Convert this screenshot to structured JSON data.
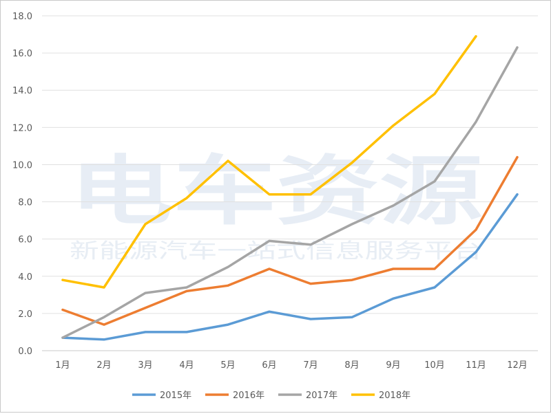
{
  "chart_data": {
    "type": "line",
    "title": "",
    "xlabel": "",
    "ylabel": "",
    "categories": [
      "1月",
      "2月",
      "3月",
      "4月",
      "5月",
      "6月",
      "7月",
      "8月",
      "9月",
      "10月",
      "11月",
      "12月"
    ],
    "ylim": [
      0,
      18
    ],
    "yticks": [
      "0.0",
      "2.0",
      "4.0",
      "6.0",
      "8.0",
      "10.0",
      "12.0",
      "14.0",
      "16.0",
      "18.0"
    ],
    "grid": true,
    "legend_position": "bottom",
    "series": [
      {
        "name": "2015年",
        "color": "#5B9BD5",
        "values": [
          0.7,
          0.6,
          1.0,
          1.0,
          1.4,
          2.1,
          1.7,
          1.8,
          2.8,
          3.4,
          5.3,
          8.4
        ]
      },
      {
        "name": "2016年",
        "color": "#ED7D31",
        "values": [
          2.2,
          1.4,
          2.3,
          3.2,
          3.5,
          4.4,
          3.6,
          3.8,
          4.4,
          4.4,
          6.5,
          10.4
        ]
      },
      {
        "name": "2017年",
        "color": "#A5A5A5",
        "values": [
          0.7,
          1.8,
          3.1,
          3.4,
          4.5,
          5.9,
          5.7,
          6.8,
          7.8,
          9.1,
          12.3,
          16.3
        ]
      },
      {
        "name": "2018年",
        "color": "#FFC000",
        "values": [
          3.8,
          3.4,
          6.8,
          8.2,
          10.2,
          8.4,
          8.4,
          10.1,
          12.1,
          13.8,
          16.9,
          null
        ]
      }
    ]
  },
  "watermark": {
    "main": "电车资源",
    "sub": "新能源汽车一站式信息服务平台"
  }
}
